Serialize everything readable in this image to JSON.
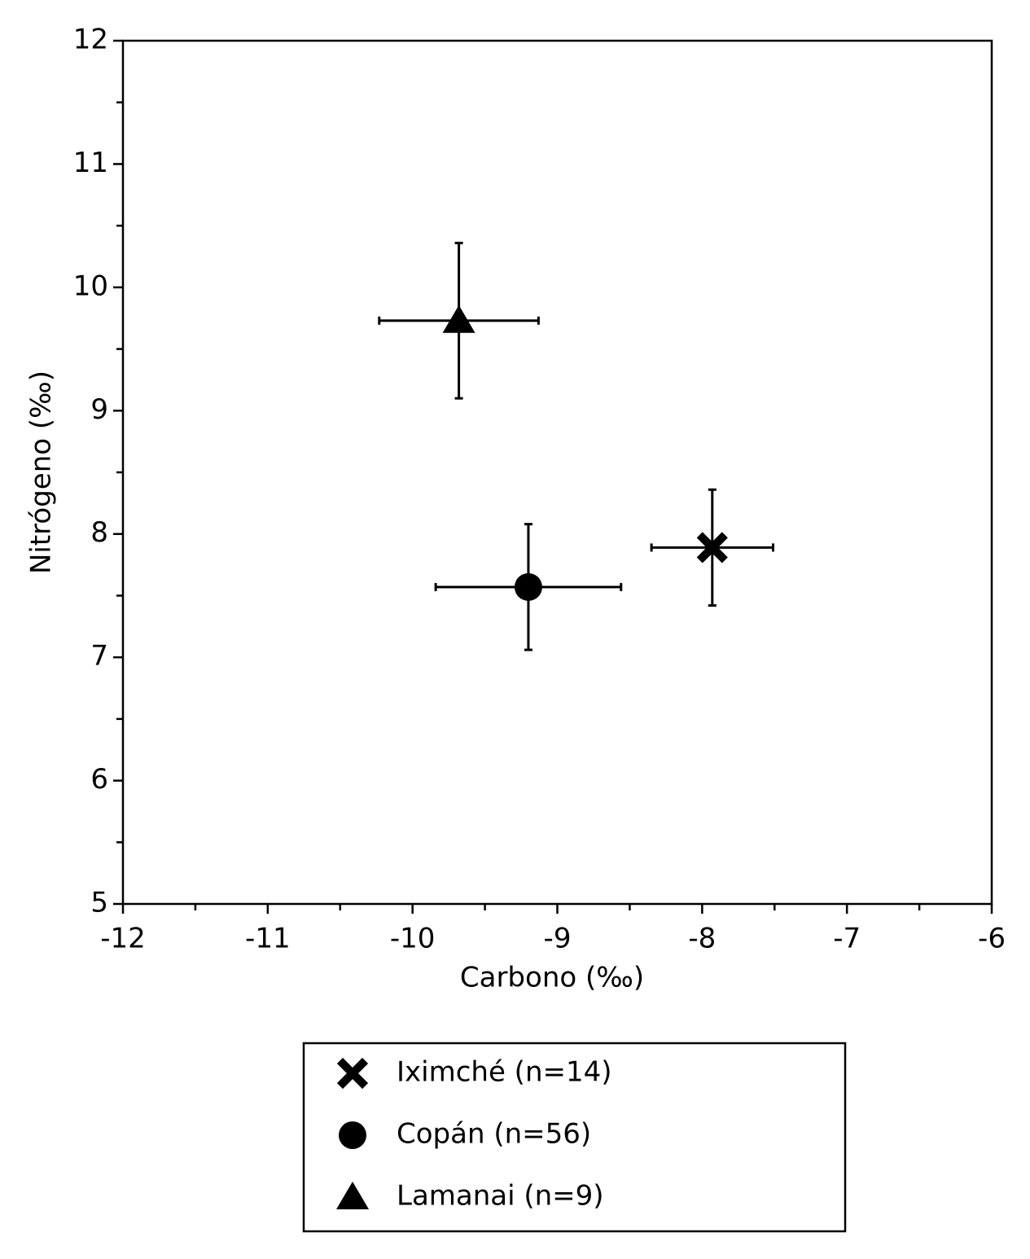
{
  "chart_data": {
    "type": "scatter",
    "xlabel": "Carbono (‰)",
    "ylabel": "Nitrógeno (‰)",
    "xlim": [
      -12,
      -6
    ],
    "xticks": [
      -12,
      -11,
      -10,
      -9,
      -8,
      -7,
      -6
    ],
    "ylim": [
      5,
      12
    ],
    "yticks": [
      5,
      6,
      7,
      8,
      9,
      10,
      11,
      12
    ],
    "series": [
      {
        "name": "Iximché (n=14)",
        "marker": "x",
        "color": "#000000",
        "x": [
          -7.93
        ],
        "values": [
          7.89
        ],
        "xerr": [
          0.42
        ],
        "yerr": [
          0.47
        ]
      },
      {
        "name": "Copán (n=56)",
        "marker": "circle",
        "color": "#000000",
        "x": [
          -9.2
        ],
        "values": [
          7.57
        ],
        "xerr": [
          0.64
        ],
        "yerr": [
          0.51
        ]
      },
      {
        "name": "Lamanai (n=9)",
        "marker": "triangle",
        "color": "#000000",
        "x": [
          -9.68
        ],
        "values": [
          9.73
        ],
        "xerr": [
          0.55
        ],
        "yerr": [
          0.63
        ]
      }
    ]
  }
}
